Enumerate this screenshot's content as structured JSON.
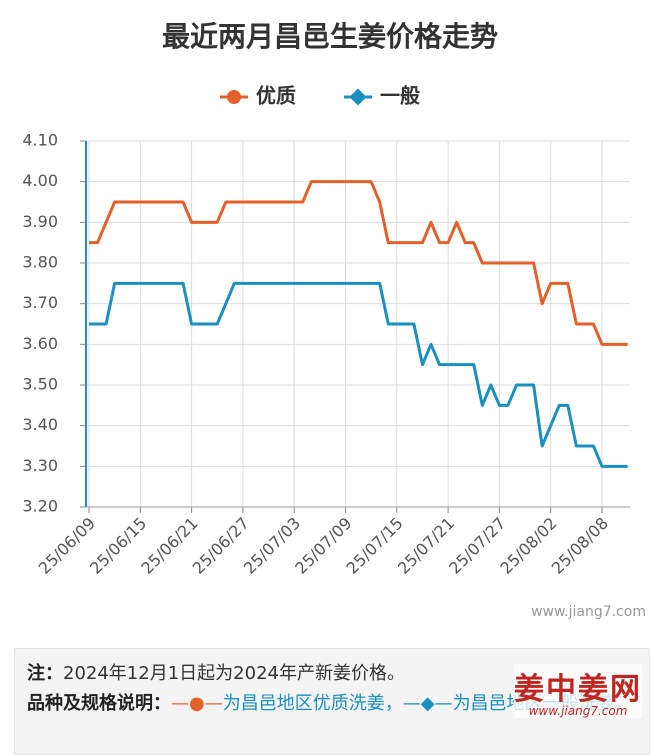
{
  "chart_data": {
    "type": "line",
    "title": "最近两月昌邑生姜价格走势",
    "categories": [
      "25/06/09",
      null,
      null,
      null,
      null,
      null,
      "25/06/15",
      null,
      null,
      null,
      null,
      null,
      "25/06/21",
      null,
      null,
      null,
      null,
      null,
      "25/06/27",
      null,
      null,
      null,
      null,
      null,
      "25/07/03",
      null,
      null,
      null,
      null,
      null,
      "25/07/09",
      null,
      null,
      null,
      null,
      null,
      "25/07/15",
      null,
      null,
      null,
      null,
      null,
      "25/07/21",
      null,
      null,
      null,
      null,
      null,
      "25/07/27",
      null,
      null,
      null,
      null,
      null,
      "25/08/02",
      null,
      null,
      null,
      null,
      null,
      "25/08/08",
      null,
      null,
      null
    ],
    "series": [
      {
        "name": "优质",
        "color": "#e4602a",
        "marker": "circle",
        "values": [
          3.85,
          3.85,
          3.9,
          3.95,
          3.95,
          3.95,
          3.95,
          3.95,
          3.95,
          3.95,
          3.95,
          3.95,
          3.9,
          3.9,
          3.9,
          3.9,
          3.95,
          3.95,
          3.95,
          3.95,
          3.95,
          3.95,
          3.95,
          3.95,
          3.95,
          3.95,
          4.0,
          4.0,
          4.0,
          4.0,
          4.0,
          4.0,
          4.0,
          4.0,
          3.95,
          3.85,
          3.85,
          3.85,
          3.85,
          3.85,
          3.9,
          3.85,
          3.85,
          3.9,
          3.85,
          3.85,
          3.8,
          3.8,
          3.8,
          3.8,
          3.8,
          3.8,
          3.8,
          3.7,
          3.75,
          3.75,
          3.75,
          3.65,
          3.65,
          3.65,
          3.6,
          3.6,
          3.6,
          3.6
        ]
      },
      {
        "name": "一般",
        "color": "#1a8fc0",
        "marker": "diamond",
        "values": [
          3.65,
          3.65,
          3.65,
          3.75,
          3.75,
          3.75,
          3.75,
          3.75,
          3.75,
          3.75,
          3.75,
          3.75,
          3.65,
          3.65,
          3.65,
          3.65,
          3.7,
          3.75,
          3.75,
          3.75,
          3.75,
          3.75,
          3.75,
          3.75,
          3.75,
          3.75,
          3.75,
          3.75,
          3.75,
          3.75,
          3.75,
          3.75,
          3.75,
          3.75,
          3.75,
          3.65,
          3.65,
          3.65,
          3.65,
          3.55,
          3.6,
          3.55,
          3.55,
          3.55,
          3.55,
          3.55,
          3.45,
          3.5,
          3.45,
          3.45,
          3.5,
          3.5,
          3.5,
          3.35,
          3.4,
          3.45,
          3.45,
          3.35,
          3.35,
          3.35,
          3.3,
          3.3,
          3.3,
          3.3
        ]
      }
    ],
    "ylim": [
      3.2,
      4.1
    ],
    "yticks": [
      {
        "value": 3.2,
        "label": "3.20"
      },
      {
        "value": 3.3,
        "label": "3.30"
      },
      {
        "value": 3.4,
        "label": "3.40"
      },
      {
        "value": 3.5,
        "label": "3.50"
      },
      {
        "value": 3.6,
        "label": "3.60"
      },
      {
        "value": 3.7,
        "label": "3.70"
      },
      {
        "value": 3.8,
        "label": "3.80"
      },
      {
        "value": 3.9,
        "label": "3.90"
      },
      {
        "value": 4.0,
        "label": "4.00"
      },
      {
        "value": 4.1,
        "label": "4.10"
      }
    ],
    "grid": true,
    "legend": "top",
    "watermark": "www.jiang7.com"
  },
  "note": {
    "label": "注：",
    "text": "2024年12月1日起为2024年产新姜价格。"
  },
  "spec": {
    "label": "品种及规格说明：",
    "quality": "为昌邑地区优质洗姜，",
    "general": "为昌邑地区一般洗姜。"
  },
  "logo": {
    "name": "姜中姜网",
    "url": "www.jiang7.com"
  }
}
